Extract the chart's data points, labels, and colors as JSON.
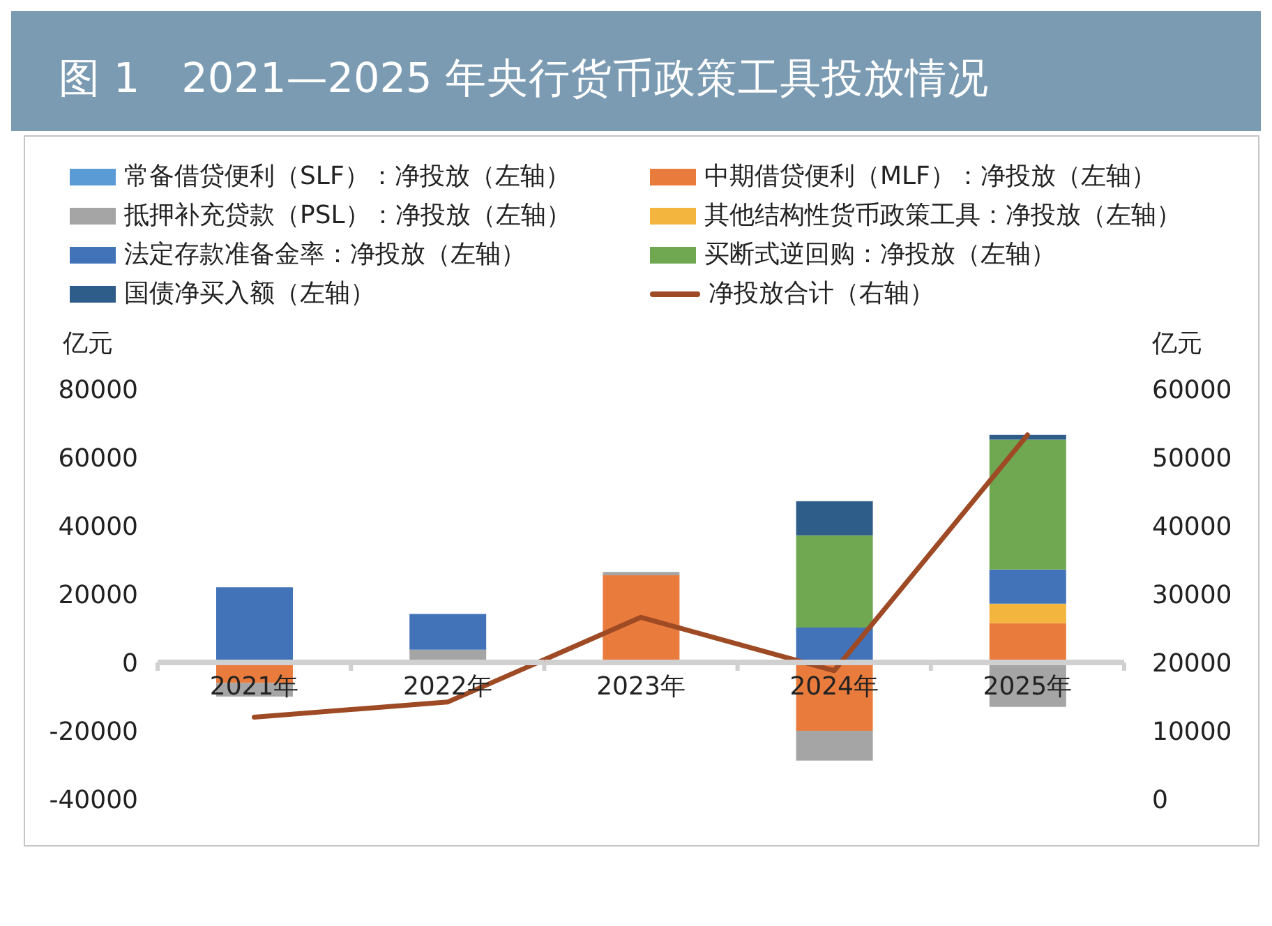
{
  "chart_data": {
    "type": "bar",
    "title": "图 1　2021—2025 年央行货币政策工具投放情况",
    "ylabel": "亿元",
    "y2label": "亿元",
    "categories": [
      "2021年",
      "2022年",
      "2023年",
      "2024年",
      "2025年"
    ],
    "stacked": true,
    "series": [
      {
        "name": "常备借贷便利（SLF）：净投放（左轴）",
        "color": "#5b9bd5",
        "values": [
          0,
          0,
          0,
          0,
          0
        ]
      },
      {
        "name": "中期借贷便利（MLF）：净投放（左轴）",
        "color": "#e97c3c",
        "values": [
          -6000,
          0,
          25500,
          -20000,
          11500
        ]
      },
      {
        "name": "抵押补充贷款（PSL）：净投放（左轴）",
        "color": "#a5a5a5",
        "values": [
          -4000,
          3700,
          1000,
          -8700,
          -13000
        ]
      },
      {
        "name": "其他结构性货币政策工具：净投放（左轴）",
        "color": "#f4b53f",
        "values": [
          0,
          0,
          0,
          0,
          5700
        ]
      },
      {
        "name": "法定存款准备金率：净投放（左轴）",
        "color": "#4273b9",
        "values": [
          22000,
          10500,
          0,
          10200,
          10000
        ]
      },
      {
        "name": "买断式逆回购：净投放（左轴）",
        "color": "#70a852",
        "values": [
          0,
          0,
          0,
          27000,
          38000
        ]
      },
      {
        "name": "国债净买入额（左轴）",
        "color": "#2f5d8a",
        "values": [
          0,
          0,
          0,
          10000,
          1400
        ]
      },
      {
        "name": "净投放合计（右轴）",
        "type": "line",
        "axis": "y2",
        "color": "#9e4a25",
        "values": [
          12000,
          14200,
          26600,
          18800,
          53300
        ]
      }
    ],
    "ylim": [
      -40000,
      80000
    ],
    "yticks": [
      -40000,
      -20000,
      0,
      20000,
      40000,
      60000,
      80000
    ],
    "y2lim": [
      0,
      60000
    ],
    "y2ticks": [
      0,
      10000,
      20000,
      30000,
      40000,
      50000,
      60000
    ],
    "legend": "top"
  }
}
